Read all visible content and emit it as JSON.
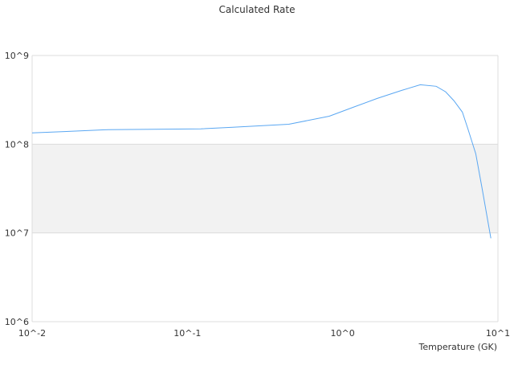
{
  "chart_data": {
    "type": "line",
    "title": "Calculated Rate",
    "xlabel": "Temperature (GK)",
    "ylabel": "",
    "x_scale": "log",
    "y_scale": "log",
    "xlim": [
      0.01,
      10
    ],
    "ylim": [
      1000000,
      1000000000
    ],
    "x_ticks": [
      "10^-2",
      "10^-1",
      "10^0",
      "10^1"
    ],
    "y_ticks": [
      "10^6",
      "10^7",
      "10^8",
      "10^9"
    ],
    "grid": true,
    "shaded_band": [
      10000000,
      100000000
    ],
    "legend": "none",
    "series": [
      {
        "color": "#5aa7f2",
        "x": [
          0.01,
          0.0161,
          0.031,
          0.122,
          0.196,
          0.45,
          0.82,
          1.17,
          1.67,
          2.4,
          3.16,
          4.0,
          4.6,
          5.2,
          5.9,
          6.4,
          7.2,
          7.9,
          9.0
        ],
        "y": [
          134000000,
          139000000,
          146000000,
          149000000,
          155000000,
          168000000,
          207000000,
          261000000,
          328000000,
          404000000,
          468000000,
          450000000,
          390000000,
          310000000,
          230000000,
          150000000,
          78000000,
          32000000,
          8700000
        ]
      }
    ]
  }
}
